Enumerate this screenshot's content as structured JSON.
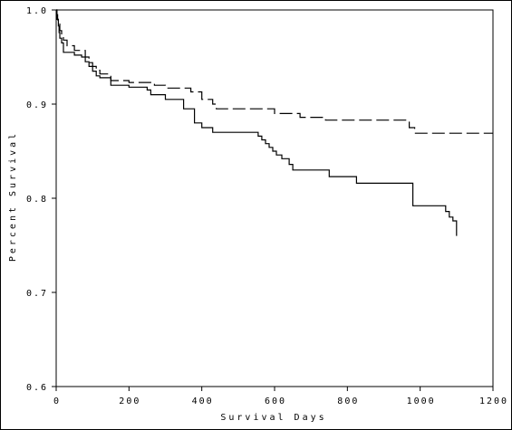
{
  "chart_data": {
    "type": "line",
    "title": "",
    "xlabel": "Survival Days",
    "ylabel": "Percent Survival",
    "xlim": [
      0,
      1200
    ],
    "ylim": [
      0.6,
      1.0
    ],
    "x_ticks": [
      0,
      200,
      400,
      600,
      800,
      1000,
      1200
    ],
    "y_ticks": [
      0.6,
      0.7,
      0.8,
      0.9,
      1.0
    ],
    "x_tick_labels": [
      "0",
      "200",
      "400",
      "600",
      "800",
      "1000",
      "1200"
    ],
    "y_tick_labels": [
      "0.6",
      "0.7",
      "0.8",
      "0.9",
      "1.0"
    ],
    "grid": false,
    "legend": "none",
    "series": [
      {
        "line_style": "solid",
        "color": "#000000",
        "x": [
          0,
          2,
          4,
          6,
          8,
          10,
          15,
          20,
          30,
          50,
          70,
          80,
          90,
          100,
          110,
          120,
          150,
          200,
          250,
          260,
          300,
          350,
          380,
          400,
          430,
          550,
          555,
          565,
          575,
          585,
          595,
          605,
          620,
          640,
          650,
          700,
          750,
          825,
          980,
          1070,
          1080,
          1090,
          1100
        ],
        "y": [
          1.0,
          0.995,
          0.99,
          0.983,
          0.976,
          0.97,
          0.965,
          0.955,
          0.955,
          0.952,
          0.95,
          0.945,
          0.94,
          0.935,
          0.93,
          0.928,
          0.92,
          0.918,
          0.915,
          0.91,
          0.905,
          0.895,
          0.88,
          0.875,
          0.87,
          0.87,
          0.866,
          0.862,
          0.858,
          0.854,
          0.85,
          0.846,
          0.842,
          0.836,
          0.83,
          0.83,
          0.823,
          0.816,
          0.792,
          0.786,
          0.78,
          0.776,
          0.76
        ]
      },
      {
        "line_style": "dashed",
        "color": "#000000",
        "x": [
          0,
          2,
          5,
          10,
          15,
          20,
          30,
          50,
          80,
          90,
          100,
          110,
          120,
          150,
          200,
          270,
          300,
          370,
          400,
          430,
          440,
          600,
          670,
          740,
          970,
          985,
          1200
        ],
        "y": [
          1.0,
          0.99,
          0.985,
          0.978,
          0.972,
          0.968,
          0.962,
          0.957,
          0.95,
          0.944,
          0.94,
          0.936,
          0.932,
          0.925,
          0.923,
          0.92,
          0.917,
          0.913,
          0.905,
          0.9,
          0.895,
          0.89,
          0.886,
          0.883,
          0.875,
          0.869,
          0.869
        ]
      }
    ]
  }
}
